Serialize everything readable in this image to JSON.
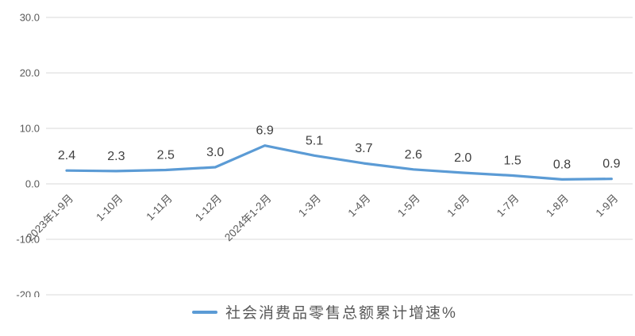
{
  "chart_data": {
    "type": "line",
    "title": "",
    "categories": [
      "2023年1-9月",
      "1-10月",
      "1-11月",
      "1-12月",
      "2024年1-2月",
      "1-3月",
      "1-4月",
      "1-5月",
      "1-6月",
      "1-7月",
      "1-8月",
      "1-9月"
    ],
    "series": [
      {
        "name": "社会消费品零售总额累计增速%",
        "values": [
          2.4,
          2.3,
          2.5,
          3.0,
          6.9,
          5.1,
          3.7,
          2.6,
          2.0,
          1.5,
          0.8,
          0.9
        ],
        "color": "#5b9bd5"
      }
    ],
    "data_labels": [
      "2.4",
      "2.3",
      "2.5",
      "3.0",
      "6.9",
      "5.1",
      "3.7",
      "2.6",
      "2.0",
      "1.5",
      "0.8",
      "0.9"
    ],
    "y_ticks": [
      "30.0",
      "20.0",
      "10.0",
      "0.0",
      "-10.0",
      "-20.0"
    ],
    "ylim": [
      -20.0,
      30.0
    ],
    "grid": "horizontal",
    "legend_position": "bottom",
    "colors": {
      "line": "#5b9bd5",
      "gridline": "#d9d9d9",
      "data_label": "#404040",
      "axis_label": "#595959",
      "legend_text": "#595959",
      "background": "#ffffff"
    }
  }
}
